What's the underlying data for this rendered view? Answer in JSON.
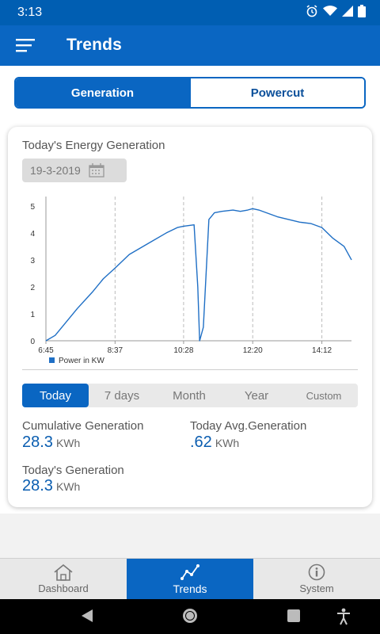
{
  "status_bar": {
    "time": "3:13"
  },
  "app_bar": {
    "title": "Trends"
  },
  "segments": [
    {
      "label": "Generation"
    },
    {
      "label": "Powercut"
    }
  ],
  "card": {
    "title": "Today's Energy Generation",
    "date": "19-3-2019"
  },
  "ranges": [
    {
      "label": "Today"
    },
    {
      "label": "7 days"
    },
    {
      "label": "Month"
    },
    {
      "label": "Year"
    },
    {
      "label": "Custom"
    }
  ],
  "stats": {
    "cumulative_label": "Cumulative Generation",
    "cumulative_value": "28.3",
    "cumulative_unit": "KWh",
    "avg_label": "Today Avg.Generation",
    "avg_value": ".62",
    "avg_unit": "KWh",
    "today_label": "Today's Generation",
    "today_value": "28.3",
    "today_unit": "KWh"
  },
  "bottom_nav": [
    {
      "label": "Dashboard"
    },
    {
      "label": "Trends"
    },
    {
      "label": "System"
    }
  ],
  "colors": {
    "primary": "#0a66c2",
    "line": "#1f6fc5"
  },
  "chart_data": {
    "type": "line",
    "title": "",
    "xlabel": "",
    "ylabel": "",
    "x_ticks": [
      "6:45",
      "8:37",
      "10:28",
      "12:20",
      "14:12"
    ],
    "y_ticks": [
      0,
      1,
      2,
      3,
      4,
      5
    ],
    "ylim": [
      0,
      5
    ],
    "legend": "Power in KW",
    "legend_position": "bottom-left",
    "series": [
      {
        "name": "Power in KW",
        "x": [
          6.75,
          7.0,
          7.3,
          7.6,
          8.0,
          8.3,
          8.62,
          9.0,
          9.5,
          10.0,
          10.3,
          10.47,
          10.75,
          10.85,
          10.9,
          11.0,
          11.15,
          11.3,
          11.5,
          11.8,
          12.0,
          12.2,
          12.33,
          12.5,
          12.8,
          13.0,
          13.3,
          13.6,
          13.9,
          14.2,
          14.5,
          14.8,
          15.0
        ],
        "values": [
          0.0,
          0.2,
          0.7,
          1.2,
          1.8,
          2.3,
          2.7,
          3.2,
          3.6,
          4.0,
          4.2,
          4.25,
          4.3,
          2.0,
          0.0,
          0.5,
          4.5,
          4.75,
          4.8,
          4.85,
          4.8,
          4.85,
          4.9,
          4.85,
          4.7,
          4.6,
          4.5,
          4.4,
          4.35,
          4.2,
          3.8,
          3.5,
          3.0
        ]
      }
    ],
    "grid": "vertical-dashed"
  }
}
